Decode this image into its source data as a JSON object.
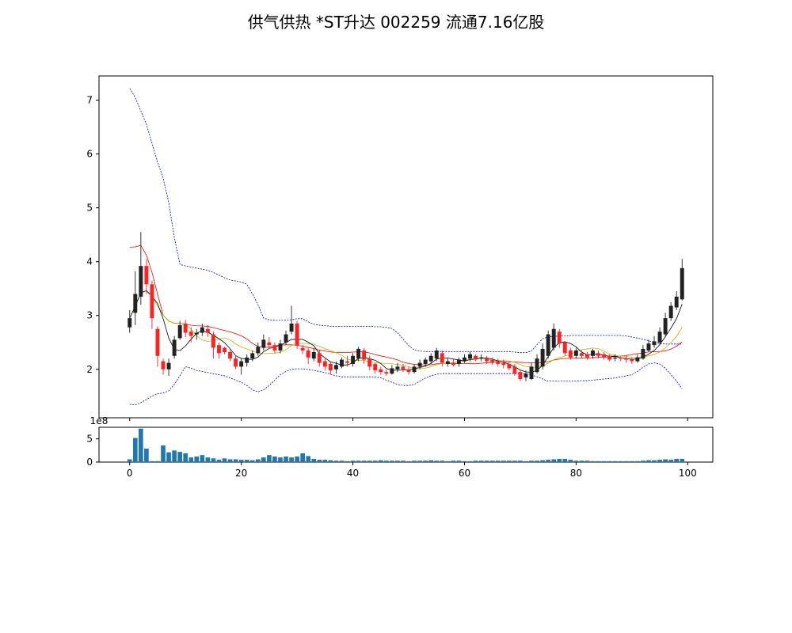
{
  "chart_title": "供气供热 *ST升达 002259 流通7.16亿股",
  "chart_data": {
    "type": "candlestick",
    "title": "供气供热 *ST升达 002259 流通7.16亿股",
    "x": [
      0,
      1,
      2,
      3,
      4,
      5,
      6,
      7,
      8,
      9,
      10,
      11,
      12,
      13,
      14,
      15,
      16,
      17,
      18,
      19,
      20,
      21,
      22,
      23,
      24,
      25,
      26,
      27,
      28,
      29,
      30,
      31,
      32,
      33,
      34,
      35,
      36,
      37,
      38,
      39,
      40,
      41,
      42,
      43,
      44,
      45,
      46,
      47,
      48,
      49,
      50,
      51,
      52,
      53,
      54,
      55,
      56,
      57,
      58,
      59,
      60,
      61,
      62,
      63,
      64,
      65,
      66,
      67,
      68,
      69,
      70,
      71,
      72,
      73,
      74,
      75,
      76,
      77,
      78,
      79,
      80,
      81,
      82,
      83,
      84,
      85,
      86,
      87,
      88,
      89,
      90,
      91,
      92,
      93,
      94,
      95,
      96,
      97,
      98,
      99
    ],
    "open": [
      2.78,
      3.05,
      3.35,
      3.92,
      3.58,
      2.75,
      2.15,
      2.0,
      2.25,
      2.58,
      2.85,
      2.7,
      2.65,
      2.68,
      2.75,
      2.65,
      2.45,
      2.4,
      2.32,
      2.2,
      2.05,
      2.12,
      2.2,
      2.3,
      2.4,
      2.5,
      2.45,
      2.35,
      2.5,
      2.7,
      2.85,
      2.4,
      2.35,
      2.2,
      2.3,
      2.15,
      2.1,
      2.0,
      2.05,
      2.15,
      2.1,
      2.2,
      2.35,
      2.2,
      2.1,
      2.0,
      1.95,
      1.92,
      2.0,
      2.05,
      2.0,
      1.95,
      2.05,
      2.1,
      2.15,
      2.2,
      2.3,
      2.1,
      2.12,
      2.1,
      2.15,
      2.2,
      2.25,
      2.2,
      2.2,
      2.18,
      2.15,
      2.12,
      2.1,
      2.05,
      1.95,
      1.85,
      1.82,
      1.95,
      2.05,
      2.25,
      2.4,
      2.7,
      2.5,
      2.35,
      2.25,
      2.3,
      2.28,
      2.25,
      2.3,
      2.28,
      2.25,
      2.2,
      2.22,
      2.2,
      2.18,
      2.15,
      2.2,
      2.35,
      2.45,
      2.5,
      2.65,
      2.95,
      3.15,
      3.3
    ],
    "close": [
      2.95,
      3.4,
      3.92,
      3.58,
      2.95,
      2.25,
      2.0,
      2.12,
      2.55,
      2.82,
      2.68,
      2.62,
      2.68,
      2.78,
      2.68,
      2.4,
      2.3,
      2.32,
      2.2,
      2.05,
      2.15,
      2.22,
      2.3,
      2.42,
      2.55,
      2.45,
      2.35,
      2.48,
      2.65,
      2.85,
      2.45,
      2.35,
      2.22,
      2.32,
      2.12,
      2.05,
      1.98,
      2.08,
      2.18,
      2.12,
      2.25,
      2.38,
      2.18,
      2.05,
      1.98,
      1.95,
      1.92,
      2.02,
      2.05,
      2.0,
      1.95,
      2.05,
      2.12,
      2.18,
      2.25,
      2.35,
      2.12,
      2.15,
      2.08,
      2.18,
      2.22,
      2.28,
      2.18,
      2.22,
      2.15,
      2.12,
      2.1,
      2.08,
      2.02,
      1.92,
      1.82,
      1.92,
      2.05,
      2.2,
      2.38,
      2.65,
      2.75,
      2.48,
      2.3,
      2.22,
      2.35,
      2.25,
      2.22,
      2.35,
      2.25,
      2.22,
      2.18,
      2.22,
      2.2,
      2.18,
      2.15,
      2.22,
      2.38,
      2.48,
      2.52,
      2.7,
      2.95,
      3.18,
      3.35,
      3.88
    ],
    "high": [
      3.1,
      3.82,
      4.55,
      4.05,
      3.65,
      2.8,
      2.2,
      2.2,
      2.62,
      2.9,
      2.92,
      2.78,
      2.75,
      2.85,
      2.82,
      2.7,
      2.5,
      2.42,
      2.35,
      2.25,
      2.2,
      2.28,
      2.35,
      2.5,
      2.65,
      2.6,
      2.5,
      2.55,
      2.72,
      3.18,
      2.9,
      2.45,
      2.4,
      2.38,
      2.35,
      2.2,
      2.15,
      2.15,
      2.22,
      2.25,
      2.3,
      2.42,
      2.4,
      2.25,
      2.12,
      2.05,
      2.0,
      2.08,
      2.12,
      2.1,
      2.05,
      2.1,
      2.18,
      2.22,
      2.3,
      2.4,
      2.35,
      2.2,
      2.2,
      2.22,
      2.28,
      2.32,
      2.28,
      2.28,
      2.25,
      2.22,
      2.2,
      2.18,
      2.15,
      2.1,
      1.98,
      1.98,
      2.12,
      2.28,
      2.48,
      2.72,
      2.85,
      2.75,
      2.52,
      2.4,
      2.4,
      2.35,
      2.32,
      2.38,
      2.35,
      2.32,
      2.28,
      2.28,
      2.25,
      2.25,
      2.22,
      2.28,
      2.45,
      2.55,
      2.62,
      2.78,
      3.05,
      3.25,
      3.45,
      4.05
    ],
    "low": [
      2.68,
      2.82,
      3.2,
      3.4,
      2.75,
      2.05,
      1.9,
      1.88,
      2.2,
      2.55,
      2.6,
      2.5,
      2.55,
      2.62,
      2.6,
      2.2,
      2.2,
      2.28,
      2.15,
      2.0,
      1.9,
      2.05,
      2.15,
      2.25,
      2.35,
      2.38,
      2.3,
      2.3,
      2.45,
      2.65,
      2.38,
      2.28,
      2.1,
      2.15,
      2.05,
      1.98,
      1.9,
      1.92,
      2.02,
      2.05,
      2.05,
      2.15,
      2.1,
      1.98,
      1.92,
      1.9,
      1.88,
      1.9,
      1.95,
      1.95,
      1.9,
      1.92,
      2.0,
      2.05,
      2.1,
      2.15,
      2.05,
      2.05,
      2.05,
      2.05,
      2.12,
      2.15,
      2.15,
      2.15,
      2.1,
      2.08,
      2.05,
      2.02,
      1.98,
      1.88,
      1.78,
      1.78,
      1.8,
      1.92,
      2.0,
      2.2,
      2.35,
      2.4,
      2.25,
      2.18,
      2.2,
      2.2,
      2.18,
      2.2,
      2.2,
      2.18,
      2.15,
      2.15,
      2.15,
      2.12,
      2.1,
      2.12,
      2.18,
      2.32,
      2.4,
      2.45,
      2.6,
      2.9,
      3.1,
      3.28
    ],
    "volume": [
      0.06,
      0.52,
      0.72,
      0.29,
      0.02,
      0.02,
      0.36,
      0.21,
      0.25,
      0.22,
      0.19,
      0.1,
      0.12,
      0.15,
      0.1,
      0.08,
      0.05,
      0.08,
      0.06,
      0.06,
      0.05,
      0.05,
      0.04,
      0.06,
      0.1,
      0.15,
      0.12,
      0.1,
      0.12,
      0.1,
      0.12,
      0.19,
      0.13,
      0.07,
      0.05,
      0.05,
      0.04,
      0.03,
      0.03,
      0.02,
      0.03,
      0.03,
      0.03,
      0.03,
      0.03,
      0.04,
      0.03,
      0.03,
      0.03,
      0.03,
      0.02,
      0.03,
      0.03,
      0.03,
      0.04,
      0.03,
      0.03,
      0.02,
      0.03,
      0.03,
      0.02,
      0.02,
      0.03,
      0.03,
      0.03,
      0.03,
      0.03,
      0.03,
      0.03,
      0.03,
      0.03,
      0.02,
      0.03,
      0.03,
      0.04,
      0.05,
      0.06,
      0.07,
      0.07,
      0.05,
      0.03,
      0.03,
      0.03,
      0.02,
      0.02,
      0.02,
      0.02,
      0.02,
      0.02,
      0.02,
      0.02,
      0.02,
      0.03,
      0.04,
      0.04,
      0.05,
      0.06,
      0.05,
      0.07,
      0.07
    ],
    "ma_short_color": "#000000",
    "ma_mid_color": "#bbbb00",
    "ma_long_color": "#ff0000",
    "band_upper": [
      7.22,
      7.05,
      6.8,
      6.55,
      6.2,
      5.85,
      5.55,
      5.1,
      4.45,
      3.95,
      3.92,
      3.9,
      3.88,
      3.86,
      3.84,
      3.8,
      3.75,
      3.7,
      3.66,
      3.64,
      3.62,
      3.58,
      3.4,
      3.2,
      2.95,
      2.92,
      2.91,
      2.91,
      2.91,
      2.92,
      2.94,
      2.94,
      2.88,
      2.84,
      2.82,
      2.81,
      2.8,
      2.8,
      2.8,
      2.8,
      2.8,
      2.8,
      2.8,
      2.8,
      2.79,
      2.79,
      2.78,
      2.76,
      2.68,
      2.56,
      2.44,
      2.36,
      2.34,
      2.33,
      2.33,
      2.33,
      2.33,
      2.33,
      2.33,
      2.33,
      2.33,
      2.33,
      2.33,
      2.33,
      2.33,
      2.33,
      2.33,
      2.33,
      2.33,
      2.32,
      2.31,
      2.31,
      2.34,
      2.46,
      2.57,
      2.6,
      2.61,
      2.62,
      2.62,
      2.63,
      2.63,
      2.63,
      2.63,
      2.63,
      2.63,
      2.63,
      2.63,
      2.63,
      2.63,
      2.62,
      2.6,
      2.58,
      2.56,
      2.53,
      2.5,
      2.48,
      2.47,
      2.47,
      2.47,
      2.47
    ],
    "band_lower": [
      1.35,
      1.34,
      1.38,
      1.44,
      1.5,
      1.55,
      1.56,
      1.6,
      1.72,
      1.88,
      2.05,
      2.02,
      1.98,
      1.96,
      1.94,
      1.92,
      1.9,
      1.88,
      1.84,
      1.8,
      1.76,
      1.7,
      1.62,
      1.58,
      1.62,
      1.7,
      1.8,
      1.9,
      1.96,
      2.0,
      2.01,
      2.01,
      2.0,
      1.98,
      1.96,
      1.94,
      1.91,
      1.88,
      1.86,
      1.86,
      1.86,
      1.86,
      1.86,
      1.86,
      1.86,
      1.84,
      1.8,
      1.76,
      1.72,
      1.7,
      1.7,
      1.72,
      1.78,
      1.84,
      1.88,
      1.91,
      1.92,
      1.92,
      1.92,
      1.92,
      1.92,
      1.92,
      1.92,
      1.92,
      1.92,
      1.92,
      1.92,
      1.92,
      1.92,
      1.92,
      1.92,
      1.92,
      1.9,
      1.86,
      1.82,
      1.78,
      1.78,
      1.78,
      1.78,
      1.78,
      1.78,
      1.79,
      1.79,
      1.8,
      1.81,
      1.82,
      1.83,
      1.84,
      1.86,
      1.88,
      1.9,
      1.96,
      2.04,
      2.1,
      2.12,
      2.1,
      2.02,
      1.9,
      1.78,
      1.64
    ],
    "band_color": "#0000ff",
    "up_color": "#222222",
    "down_color": "#ff2222",
    "volume_color": "#1f77b4",
    "price_ylim": [
      1.1,
      7.45
    ],
    "price_yticks": [
      2,
      3,
      4,
      5,
      6,
      7
    ],
    "xlim": [
      -5.5,
      104.5
    ],
    "xticks": [
      0,
      20,
      40,
      60,
      80,
      100
    ],
    "volume_ylim": [
      0,
      0.75
    ],
    "volume_yticks": [
      0,
      0.5
    ],
    "volume_ytick_labels": [
      "0",
      "5"
    ],
    "volume_offset_label": "1e8",
    "grid": false,
    "legend": "none"
  }
}
